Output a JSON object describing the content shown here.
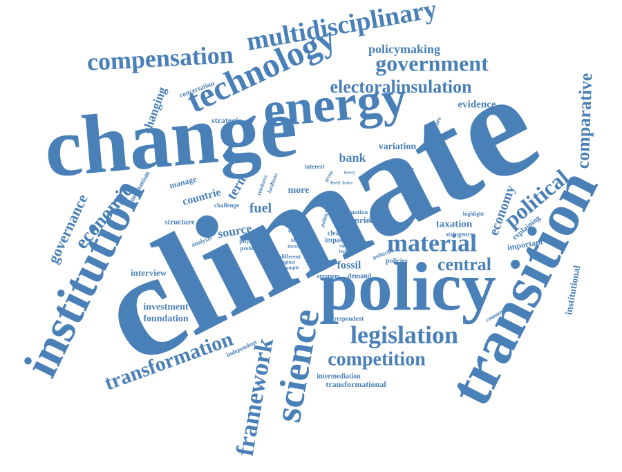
{
  "words": [
    "climate",
    "change",
    "policy",
    "transition",
    "institution",
    "energy",
    "technology",
    "multidisciplinary",
    "compensation",
    "government",
    "policymaking",
    "electoralinsulation",
    "comparative",
    "evidence",
    "political",
    "economy",
    "material",
    "central",
    "legislation",
    "competition",
    "science",
    "framework",
    "transformation",
    "economic",
    "governance",
    "changing",
    "concertation",
    "strategic",
    "bank",
    "variation",
    "democracies",
    "gasoline",
    "interest",
    "mechanism",
    "manage",
    "countrie",
    "term",
    "reinforce",
    "facilitate",
    "more",
    "challenge",
    "structure",
    "fuel",
    "source",
    "analysis",
    "physical",
    "problem",
    "interview",
    "investment",
    "foundation",
    "independent",
    "intermediation",
    "transformational",
    "respondent",
    "argument",
    "demand",
    "fossil",
    "policies",
    "price",
    "nation",
    "risk",
    "clean",
    "impact",
    "shock",
    "income",
    "different",
    "original",
    "example",
    "supply",
    "higher",
    "politician",
    "support",
    "increase",
    "paper",
    "dataset",
    "highlight",
    "taxation",
    "stringency",
    "explaining",
    "important",
    "consumer",
    "institutional",
    "expert",
    "politic",
    "group",
    "level",
    "better",
    "theory",
    "side",
    "vary"
  ]
}
